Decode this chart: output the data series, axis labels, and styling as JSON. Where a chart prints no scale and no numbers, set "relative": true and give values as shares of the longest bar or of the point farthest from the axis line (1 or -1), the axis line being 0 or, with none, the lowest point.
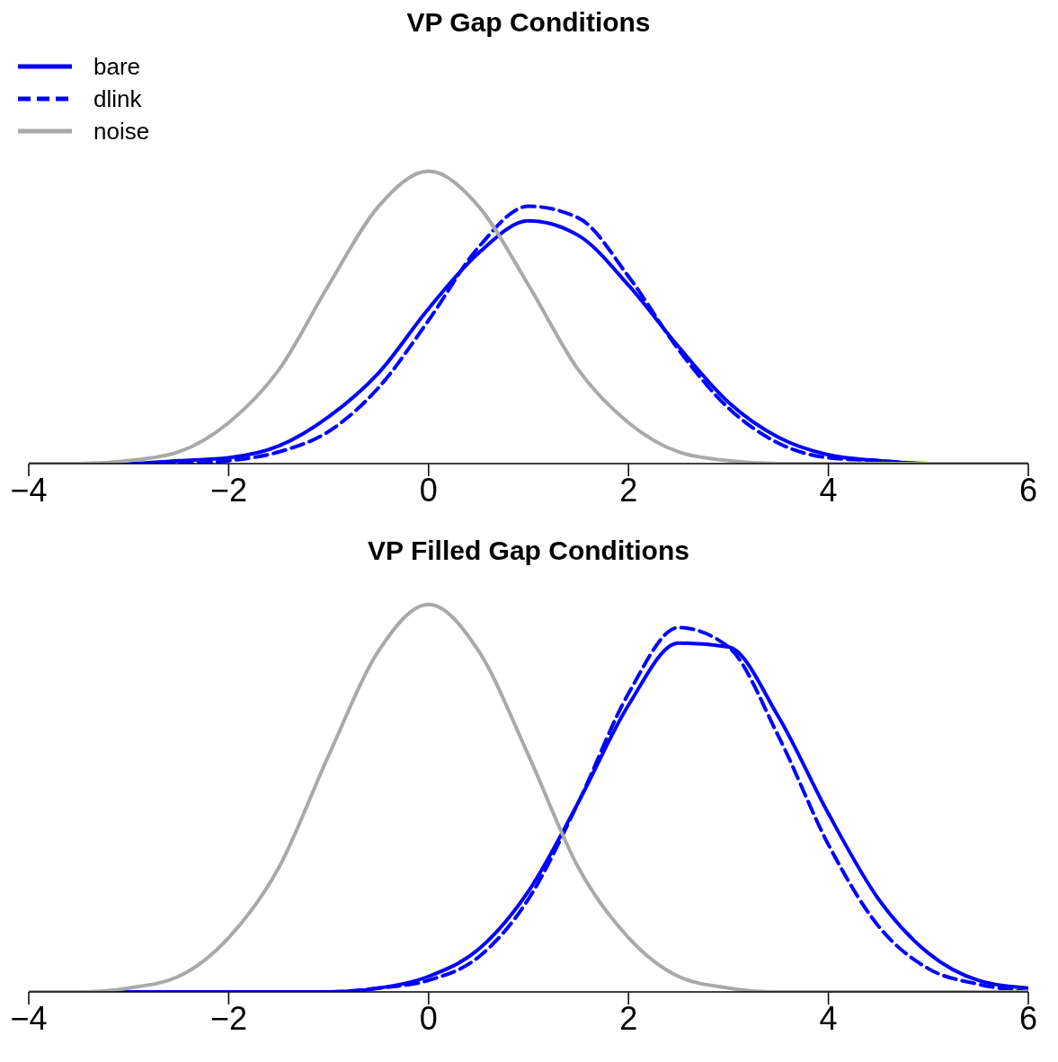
{
  "chart_data": [
    {
      "type": "line",
      "title": "VP Gap Conditions",
      "relative": true,
      "xlim": [
        -4,
        6
      ],
      "xticks": [
        -4,
        -2,
        0,
        2,
        4,
        6
      ],
      "grid": false,
      "legend": "top left",
      "x": [
        -4,
        -3.5,
        -3,
        -2.5,
        -2,
        -1.5,
        -1,
        -0.5,
        0,
        0.5,
        1,
        1.5,
        2,
        2.5,
        3,
        3.5,
        4,
        4.5,
        5,
        5.5,
        6
      ],
      "series": [
        {
          "name": "bare",
          "color": "#0000ff",
          "line_style": "solid",
          "values": [
            0,
            0,
            0,
            0.01,
            0.02,
            0.06,
            0.16,
            0.31,
            0.53,
            0.72,
            0.83,
            0.78,
            0.61,
            0.4,
            0.21,
            0.09,
            0.03,
            0.01,
            0,
            0,
            0
          ]
        },
        {
          "name": "dlink",
          "color": "#0000ff",
          "line_style": "dashed",
          "values": [
            0,
            0,
            0,
            0,
            0.01,
            0.04,
            0.11,
            0.26,
            0.49,
            0.74,
            0.88,
            0.84,
            0.64,
            0.39,
            0.19,
            0.07,
            0.02,
            0.01,
            0,
            0,
            0
          ]
        },
        {
          "name": "noise",
          "color": "#a9a9a9",
          "line_style": "solid",
          "values": [
            0,
            0,
            0.01,
            0.04,
            0.14,
            0.32,
            0.61,
            0.88,
            1,
            0.88,
            0.61,
            0.32,
            0.14,
            0.04,
            0.01,
            0,
            0,
            0,
            0,
            0,
            0
          ]
        }
      ]
    },
    {
      "type": "line",
      "title": "VP Filled Gap Conditions",
      "relative": true,
      "xlim": [
        -4,
        6
      ],
      "xticks": [
        -4,
        -2,
        0,
        2,
        4,
        6
      ],
      "grid": false,
      "x": [
        -4,
        -3.5,
        -3,
        -2.5,
        -2,
        -1.5,
        -1,
        -0.5,
        0,
        0.5,
        1,
        1.5,
        2,
        2.5,
        3,
        3.5,
        4,
        4.5,
        5,
        5.5,
        6
      ],
      "series": [
        {
          "color": "#0000ff",
          "line_style": "solid",
          "values": [
            0,
            0,
            0,
            0,
            0,
            0,
            0,
            0.01,
            0.04,
            0.11,
            0.26,
            0.49,
            0.74,
            0.9,
            0.89,
            0.71,
            0.46,
            0.24,
            0.1,
            0.03,
            0.01
          ]
        },
        {
          "color": "#0000ff",
          "line_style": "dashed",
          "values": [
            0,
            0,
            0,
            0,
            0,
            0,
            0,
            0.01,
            0.03,
            0.09,
            0.24,
            0.49,
            0.77,
            0.94,
            0.89,
            0.66,
            0.38,
            0.17,
            0.06,
            0.02,
            0
          ]
        },
        {
          "color": "#a9a9a9",
          "line_style": "solid",
          "values": [
            0,
            0,
            0.01,
            0.04,
            0.14,
            0.32,
            0.61,
            0.88,
            1,
            0.88,
            0.61,
            0.32,
            0.14,
            0.04,
            0.01,
            0,
            0,
            0,
            0,
            0,
            0
          ]
        }
      ]
    }
  ]
}
